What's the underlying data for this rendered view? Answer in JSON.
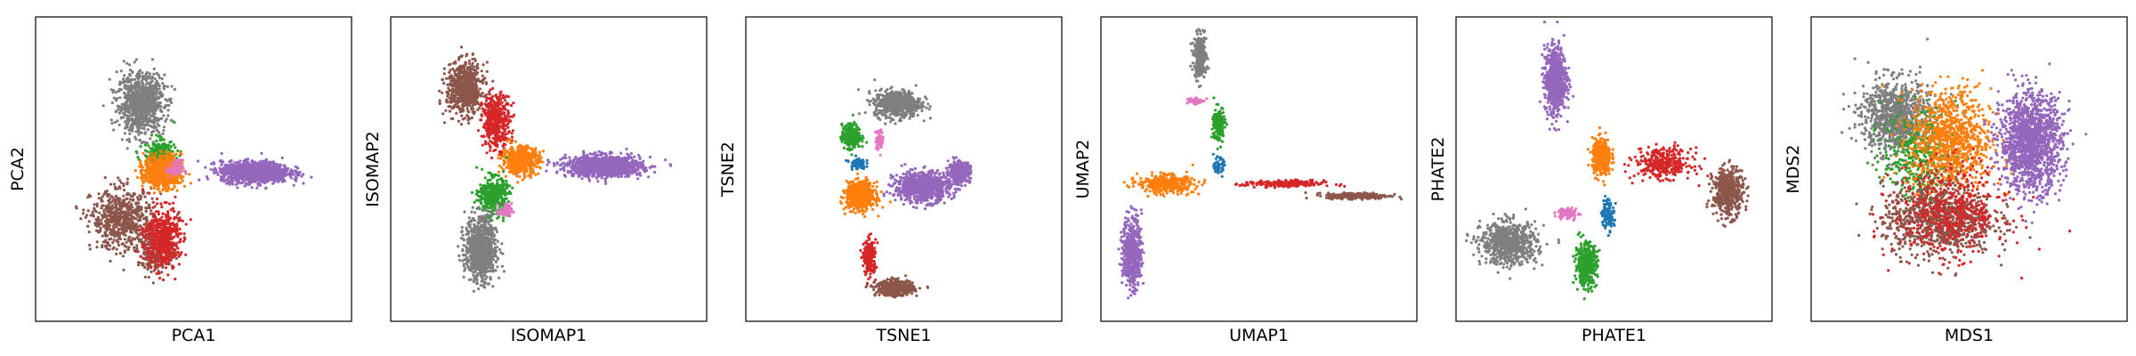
{
  "chart_data": [
    {
      "type": "scatter",
      "xlabel": "PCA1",
      "ylabel": "PCA2",
      "xticks": [],
      "yticks": [],
      "grid": false,
      "legend": false,
      "xlim": [
        0,
        10
      ],
      "ylim": [
        0,
        10
      ],
      "series": [
        {
          "color": "#7f7f7f",
          "clusters": [
            {
              "x": 3.3,
              "y": 7.2,
              "sx": 0.75,
              "sy": 1.0,
              "n": 900
            }
          ]
        },
        {
          "color": "#8c564b",
          "clusters": [
            {
              "x": 2.7,
              "y": 3.3,
              "sx": 1.0,
              "sy": 1.0,
              "n": 650
            },
            {
              "x": 3.8,
              "y": 2.2,
              "sx": 0.6,
              "sy": 0.7,
              "n": 250
            }
          ]
        },
        {
          "color": "#d62728",
          "clusters": [
            {
              "x": 4.0,
              "y": 2.7,
              "sx": 0.55,
              "sy": 1.0,
              "n": 500
            }
          ]
        },
        {
          "color": "#2ca02c",
          "clusters": [
            {
              "x": 3.9,
              "y": 5.5,
              "sx": 0.5,
              "sy": 0.5,
              "n": 250
            }
          ]
        },
        {
          "color": "#ff7f0e",
          "clusters": [
            {
              "x": 4.0,
              "y": 4.9,
              "sx": 0.6,
              "sy": 0.55,
              "n": 700
            }
          ]
        },
        {
          "color": "#e377c2",
          "clusters": [
            {
              "x": 4.4,
              "y": 5.0,
              "sx": 0.25,
              "sy": 0.3,
              "n": 60
            }
          ]
        },
        {
          "color": "#9467bd",
          "clusters": [
            {
              "x": 7.0,
              "y": 4.9,
              "sx": 1.1,
              "sy": 0.35,
              "n": 1200
            }
          ]
        }
      ]
    },
    {
      "type": "scatter",
      "xlabel": "ISOMAP1",
      "ylabel": "ISOMAP2",
      "xticks": [],
      "yticks": [],
      "grid": false,
      "legend": false,
      "xlim": [
        0,
        10
      ],
      "ylim": [
        0,
        10
      ],
      "series": [
        {
          "color": "#8c564b",
          "clusters": [
            {
              "x": 2.3,
              "y": 7.7,
              "sx": 0.6,
              "sy": 0.85,
              "n": 700
            }
          ]
        },
        {
          "color": "#d62728",
          "clusters": [
            {
              "x": 3.3,
              "y": 6.6,
              "sx": 0.45,
              "sy": 0.9,
              "n": 400
            }
          ]
        },
        {
          "color": "#ff7f0e",
          "clusters": [
            {
              "x": 4.1,
              "y": 5.3,
              "sx": 0.6,
              "sy": 0.45,
              "n": 500
            }
          ]
        },
        {
          "color": "#9467bd",
          "clusters": [
            {
              "x": 6.8,
              "y": 5.1,
              "sx": 1.2,
              "sy": 0.35,
              "n": 1200
            }
          ]
        },
        {
          "color": "#2ca02c",
          "clusters": [
            {
              "x": 3.2,
              "y": 4.1,
              "sx": 0.45,
              "sy": 0.6,
              "n": 400
            }
          ]
        },
        {
          "color": "#7f7f7f",
          "clusters": [
            {
              "x": 2.8,
              "y": 2.3,
              "sx": 0.5,
              "sy": 1.1,
              "n": 800
            }
          ]
        },
        {
          "color": "#e377c2",
          "clusters": [
            {
              "x": 3.6,
              "y": 3.6,
              "sx": 0.2,
              "sy": 0.25,
              "n": 50
            }
          ]
        }
      ]
    },
    {
      "type": "scatter",
      "xlabel": "TSNE1",
      "ylabel": "TSNE2",
      "xticks": [],
      "yticks": [],
      "grid": false,
      "legend": false,
      "xlim": [
        0,
        10
      ],
      "ylim": [
        0,
        10
      ],
      "series": [
        {
          "color": "#7f7f7f",
          "clusters": [
            {
              "x": 4.8,
              "y": 7.2,
              "sx": 0.75,
              "sy": 0.45,
              "n": 600
            }
          ]
        },
        {
          "color": "#2ca02c",
          "clusters": [
            {
              "x": 3.3,
              "y": 6.1,
              "sx": 0.3,
              "sy": 0.4,
              "n": 300
            }
          ]
        },
        {
          "color": "#e377c2",
          "clusters": [
            {
              "x": 4.2,
              "y": 6.0,
              "sx": 0.12,
              "sy": 0.35,
              "n": 60
            }
          ]
        },
        {
          "color": "#1f77b4",
          "clusters": [
            {
              "x": 3.5,
              "y": 5.2,
              "sx": 0.25,
              "sy": 0.2,
              "n": 80
            }
          ]
        },
        {
          "color": "#ff7f0e",
          "clusters": [
            {
              "x": 3.6,
              "y": 4.1,
              "sx": 0.45,
              "sy": 0.45,
              "n": 700
            }
          ]
        },
        {
          "color": "#9467bd",
          "clusters": [
            {
              "x": 5.6,
              "y": 4.4,
              "sx": 0.9,
              "sy": 0.5,
              "n": 800
            },
            {
              "x": 6.8,
              "y": 4.9,
              "sx": 0.35,
              "sy": 0.35,
              "n": 300
            }
          ]
        },
        {
          "color": "#d62728",
          "clusters": [
            {
              "x": 3.9,
              "y": 2.0,
              "sx": 0.2,
              "sy": 0.6,
              "n": 200
            }
          ]
        },
        {
          "color": "#8c564b",
          "clusters": [
            {
              "x": 4.7,
              "y": 1.0,
              "sx": 0.6,
              "sy": 0.25,
              "n": 500
            }
          ]
        }
      ]
    },
    {
      "type": "scatter",
      "xlabel": "UMAP1",
      "ylabel": "UMAP2",
      "xticks": [],
      "yticks": [],
      "grid": false,
      "legend": false,
      "xlim": [
        0,
        10
      ],
      "ylim": [
        0,
        10
      ],
      "series": [
        {
          "color": "#7f7f7f",
          "clusters": [
            {
              "x": 3.1,
              "y": 8.8,
              "sx": 0.2,
              "sy": 0.7,
              "n": 300
            }
          ]
        },
        {
          "color": "#e377c2",
          "clusters": [
            {
              "x": 2.9,
              "y": 7.3,
              "sx": 0.25,
              "sy": 0.12,
              "n": 60
            }
          ]
        },
        {
          "color": "#2ca02c",
          "clusters": [
            {
              "x": 3.7,
              "y": 6.5,
              "sx": 0.2,
              "sy": 0.6,
              "n": 150
            }
          ]
        },
        {
          "color": "#1f77b4",
          "clusters": [
            {
              "x": 3.7,
              "y": 5.1,
              "sx": 0.15,
              "sy": 0.25,
              "n": 60
            }
          ]
        },
        {
          "color": "#ff7f0e",
          "clusters": [
            {
              "x": 2.0,
              "y": 4.5,
              "sx": 0.9,
              "sy": 0.3,
              "n": 400
            }
          ]
        },
        {
          "color": "#9467bd",
          "clusters": [
            {
              "x": 0.9,
              "y": 2.2,
              "sx": 0.3,
              "sy": 1.2,
              "n": 500
            }
          ]
        },
        {
          "color": "#d62728",
          "clusters": [
            {
              "x": 5.8,
              "y": 4.5,
              "sx": 1.3,
              "sy": 0.12,
              "n": 200
            }
          ]
        },
        {
          "color": "#8c564b",
          "clusters": [
            {
              "x": 8.2,
              "y": 4.1,
              "sx": 1.0,
              "sy": 0.1,
              "n": 300
            }
          ]
        }
      ]
    },
    {
      "type": "scatter",
      "xlabel": "PHATE1",
      "ylabel": "PHATE2",
      "xticks": [],
      "yticks": [],
      "grid": false,
      "legend": false,
      "xlim": [
        0,
        10
      ],
      "ylim": [
        0,
        10
      ],
      "series": [
        {
          "color": "#9467bd",
          "clusters": [
            {
              "x": 3.1,
              "y": 8.0,
              "sx": 0.35,
              "sy": 1.1,
              "n": 700
            }
          ]
        },
        {
          "color": "#ff7f0e",
          "clusters": [
            {
              "x": 4.6,
              "y": 5.4,
              "sx": 0.3,
              "sy": 0.6,
              "n": 400
            }
          ]
        },
        {
          "color": "#d62728",
          "clusters": [
            {
              "x": 6.6,
              "y": 5.2,
              "sx": 0.9,
              "sy": 0.5,
              "n": 350
            }
          ]
        },
        {
          "color": "#8c564b",
          "clusters": [
            {
              "x": 8.7,
              "y": 4.2,
              "sx": 0.5,
              "sy": 0.8,
              "n": 450
            }
          ]
        },
        {
          "color": "#1f77b4",
          "clusters": [
            {
              "x": 4.8,
              "y": 3.5,
              "sx": 0.2,
              "sy": 0.5,
              "n": 120
            }
          ]
        },
        {
          "color": "#e377c2",
          "clusters": [
            {
              "x": 3.5,
              "y": 3.5,
              "sx": 0.35,
              "sy": 0.2,
              "n": 80
            }
          ]
        },
        {
          "color": "#2ca02c",
          "clusters": [
            {
              "x": 4.1,
              "y": 1.8,
              "sx": 0.35,
              "sy": 0.7,
              "n": 400
            }
          ]
        },
        {
          "color": "#7f7f7f",
          "clusters": [
            {
              "x": 1.6,
              "y": 2.5,
              "sx": 0.9,
              "sy": 0.7,
              "n": 700
            }
          ]
        }
      ]
    },
    {
      "type": "scatter",
      "xlabel": "MDS1",
      "ylabel": "MDS2",
      "xticks": [],
      "yticks": [],
      "grid": false,
      "legend": false,
      "xlim": [
        0,
        10
      ],
      "ylim": [
        0,
        10
      ],
      "series": [
        {
          "color": "#7f7f7f",
          "clusters": [
            {
              "x": 2.6,
              "y": 6.8,
              "sx": 1.1,
              "sy": 1.2,
              "n": 900
            }
          ]
        },
        {
          "color": "#2ca02c",
          "clusters": [
            {
              "x": 3.4,
              "y": 5.5,
              "sx": 1.2,
              "sy": 1.5,
              "n": 400
            }
          ]
        },
        {
          "color": "#ff7f0e",
          "clusters": [
            {
              "x": 4.4,
              "y": 6.0,
              "sx": 1.3,
              "sy": 1.7,
              "n": 900
            }
          ]
        },
        {
          "color": "#8c564b",
          "clusters": [
            {
              "x": 4.0,
              "y": 3.3,
              "sx": 1.8,
              "sy": 1.2,
              "n": 900
            }
          ]
        },
        {
          "color": "#d62728",
          "clusters": [
            {
              "x": 4.4,
              "y": 3.6,
              "sx": 1.8,
              "sy": 1.5,
              "n": 500
            }
          ]
        },
        {
          "color": "#9467bd",
          "clusters": [
            {
              "x": 7.0,
              "y": 5.9,
              "sx": 1.0,
              "sy": 1.6,
              "n": 1400
            }
          ]
        }
      ]
    }
  ]
}
